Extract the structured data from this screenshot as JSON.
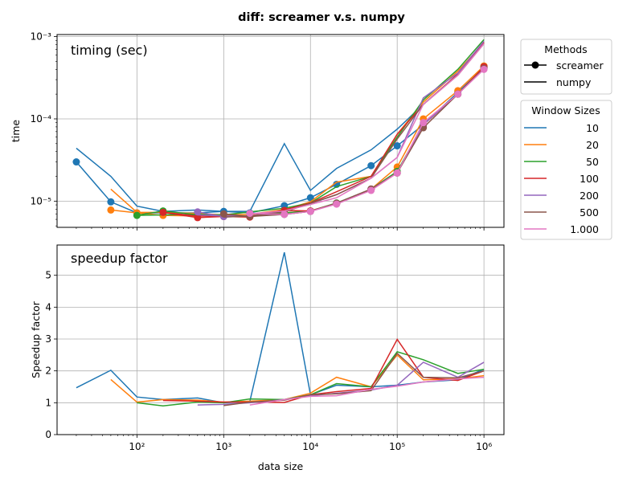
{
  "figure_title": "diff:  screamer v.s. numpy",
  "colors": {
    "10": "#1f77b4",
    "20": "#ff7f0e",
    "50": "#2ca02c",
    "100": "#d62728",
    "200": "#9467bd",
    "500": "#8c564b",
    "1.000": "#e377c2"
  },
  "legend_methods": {
    "title": "Methods",
    "entries": [
      {
        "label": "screamer",
        "marker": "circle"
      },
      {
        "label": "numpy",
        "marker": "none"
      }
    ]
  },
  "legend_windows": {
    "title": "Window Sizes",
    "entries": [
      "10",
      "20",
      "50",
      "100",
      "200",
      "500",
      "1.000"
    ]
  },
  "chart_data": [
    {
      "type": "line",
      "title": "timing (sec)",
      "xlabel": "",
      "ylabel": "time",
      "xscale": "log",
      "yscale": "log",
      "xlim": [
        12,
        1700000
      ],
      "ylim": [
        4.8e-06,
        0.00106
      ],
      "grid": true,
      "x": [
        20,
        50,
        100,
        200,
        500,
        1000,
        2000,
        5000,
        10000,
        20000,
        50000,
        100000,
        200000,
        500000,
        1000000
      ],
      "series": [
        {
          "name": "10",
          "method": "numpy",
          "values": [
            4.4e-05,
            2e-05,
            8.7e-06,
            7.5e-06,
            7.8e-06,
            7.5e-06,
            7.5e-06,
            5e-05,
            1.35e-05,
            2.5e-05,
            4.2e-05,
            7.5e-05,
            0.00015,
            0.00035,
            0.00085
          ]
        },
        {
          "name": "10",
          "method": "screamer",
          "values": [
            3e-05,
            9.8e-06,
            7.2e-06,
            7.2e-06,
            7.2e-06,
            7.5e-06,
            7.2e-06,
            8.8e-06,
            1.1e-05,
            1.6e-05,
            2.7e-05,
            4.7e-05,
            8.5e-05,
            0.00021,
            0.00042
          ]
        },
        {
          "name": "20",
          "method": "numpy",
          "values": [
            null,
            1.4e-05,
            7.3e-06,
            7.3e-06,
            7.1e-06,
            6.8e-06,
            6.9e-06,
            7.9e-06,
            9.8e-06,
            1.7e-05,
            2e-05,
            6.5e-05,
            0.00016,
            0.00038,
            0.00085
          ]
        },
        {
          "name": "20",
          "method": "screamer",
          "values": [
            null,
            7.8e-06,
            7.2e-06,
            6.7e-06,
            6.6e-06,
            6.6e-06,
            6.6e-06,
            7.2e-06,
            7.6e-06,
            9.4e-06,
            1.4e-05,
            2.6e-05,
            0.0001,
            0.00022,
            0.00044
          ]
        },
        {
          "name": "50",
          "method": "numpy",
          "values": [
            null,
            null,
            6.7e-06,
            6.8e-06,
            6.9e-06,
            6.8e-06,
            7.4e-06,
            8.2e-06,
            9.5e-06,
            1.5e-05,
            2e-05,
            6e-05,
            0.00017,
            0.0004,
            0.00092
          ]
        },
        {
          "name": "50",
          "method": "screamer",
          "values": [
            null,
            null,
            6.7e-06,
            7.6e-06,
            6.8e-06,
            6.6e-06,
            6.6e-06,
            7.2e-06,
            7.6e-06,
            9.5e-06,
            1.4e-05,
            2.3e-05,
            8.5e-05,
            0.0002,
            0.00043
          ]
        },
        {
          "name": "100",
          "method": "numpy",
          "values": [
            null,
            null,
            null,
            7.3e-06,
            6.6e-06,
            6.6e-06,
            6.6e-06,
            7.8e-06,
            9.5e-06,
            1.3e-05,
            2e-05,
            6.5e-05,
            0.00015,
            0.00035,
            0.00085
          ]
        },
        {
          "name": "100",
          "method": "screamer",
          "values": [
            null,
            null,
            null,
            7.3e-06,
            6.3e-06,
            6.5e-06,
            6.4e-06,
            7.7e-06,
            7.6e-06,
            9.4e-06,
            1.4e-05,
            2.2e-05,
            8.5e-05,
            0.0002,
            0.00043
          ]
        },
        {
          "name": "200",
          "method": "numpy",
          "values": [
            null,
            null,
            null,
            null,
            6.8e-06,
            6.6e-06,
            6.6e-06,
            7.5e-06,
            9.3e-06,
            1.2e-05,
            1.9e-05,
            3.4e-05,
            0.00018,
            0.00036,
            0.00088
          ]
        },
        {
          "name": "200",
          "method": "screamer",
          "values": [
            null,
            null,
            null,
            null,
            7.4e-06,
            6.5e-06,
            6.6e-06,
            6.9e-06,
            7.5e-06,
            9.4e-06,
            1.4e-05,
            2.2e-05,
            8.5e-05,
            0.0002,
            0.00041
          ]
        },
        {
          "name": "500",
          "method": "numpy",
          "values": [
            null,
            null,
            null,
            null,
            null,
            6.4e-06,
            6.6e-06,
            7.4e-06,
            9.4e-06,
            1.2e-05,
            1.9e-05,
            5.7e-05,
            0.00015,
            0.00034,
            0.00082
          ]
        },
        {
          "name": "500",
          "method": "screamer",
          "values": [
            null,
            null,
            null,
            null,
            null,
            7e-06,
            6.5e-06,
            6.9e-06,
            7.5e-06,
            9.4e-06,
            1.4e-05,
            2.2e-05,
            7.8e-05,
            0.0002,
            0.00041
          ]
        },
        {
          "name": "1.000",
          "method": "numpy",
          "values": [
            null,
            null,
            null,
            null,
            null,
            null,
            7e-06,
            7.6e-06,
            9.1e-06,
            1.1e-05,
            1.9e-05,
            3.4e-05,
            0.00015,
            0.00034,
            0.00082
          ]
        },
        {
          "name": "1.000",
          "method": "screamer",
          "values": [
            null,
            null,
            null,
            null,
            null,
            null,
            7.1e-06,
            6.9e-06,
            7.5e-06,
            9.2e-06,
            1.35e-05,
            2.2e-05,
            9e-05,
            0.0002,
            0.0004
          ]
        }
      ]
    },
    {
      "type": "line",
      "title": "speedup factor",
      "xlabel": "data size",
      "ylabel": "Speedup factor",
      "xscale": "log",
      "yscale": "linear",
      "xlim": [
        12,
        1700000
      ],
      "ylim": [
        0,
        5.95
      ],
      "yticks": [
        0,
        1,
        2,
        3,
        4,
        5
      ],
      "grid": true,
      "x": [
        20,
        50,
        100,
        200,
        500,
        1000,
        2000,
        5000,
        10000,
        20000,
        50000,
        100000,
        200000,
        500000,
        1000000
      ],
      "series": [
        {
          "name": "10",
          "values": [
            1.47,
            2.02,
            1.18,
            1.1,
            1.15,
            1.0,
            1.04,
            5.72,
            1.25,
            1.55,
            1.5,
            1.55,
            1.65,
            1.72,
            2.05
          ]
        },
        {
          "name": "20",
          "values": [
            null,
            1.73,
            1.02,
            1.1,
            1.08,
            1.02,
            1.05,
            1.1,
            1.3,
            1.8,
            1.5,
            2.5,
            1.72,
            1.75,
            1.85
          ]
        },
        {
          "name": "50",
          "values": [
            null,
            null,
            1.0,
            0.9,
            1.02,
            1.0,
            1.12,
            1.1,
            1.25,
            1.6,
            1.5,
            2.6,
            2.35,
            1.92,
            2.05
          ]
        },
        {
          "name": "100",
          "values": [
            null,
            null,
            null,
            1.07,
            1.05,
            1.02,
            1.02,
            1.01,
            1.25,
            1.35,
            1.45,
            2.99,
            1.8,
            1.7,
            2.0
          ]
        },
        {
          "name": "200",
          "values": [
            null,
            null,
            null,
            null,
            0.93,
            0.95,
            1.0,
            1.1,
            1.22,
            1.3,
            1.4,
            1.55,
            2.27,
            1.8,
            2.27
          ]
        },
        {
          "name": "500",
          "values": [
            null,
            null,
            null,
            null,
            null,
            0.91,
            1.02,
            1.08,
            1.25,
            1.28,
            1.38,
            2.55,
            1.8,
            1.78,
            2.0
          ]
        },
        {
          "name": "1.000",
          "values": [
            null,
            null,
            null,
            null,
            null,
            null,
            0.93,
            1.1,
            1.2,
            1.22,
            1.42,
            1.52,
            1.65,
            1.75,
            1.8
          ]
        }
      ]
    }
  ]
}
